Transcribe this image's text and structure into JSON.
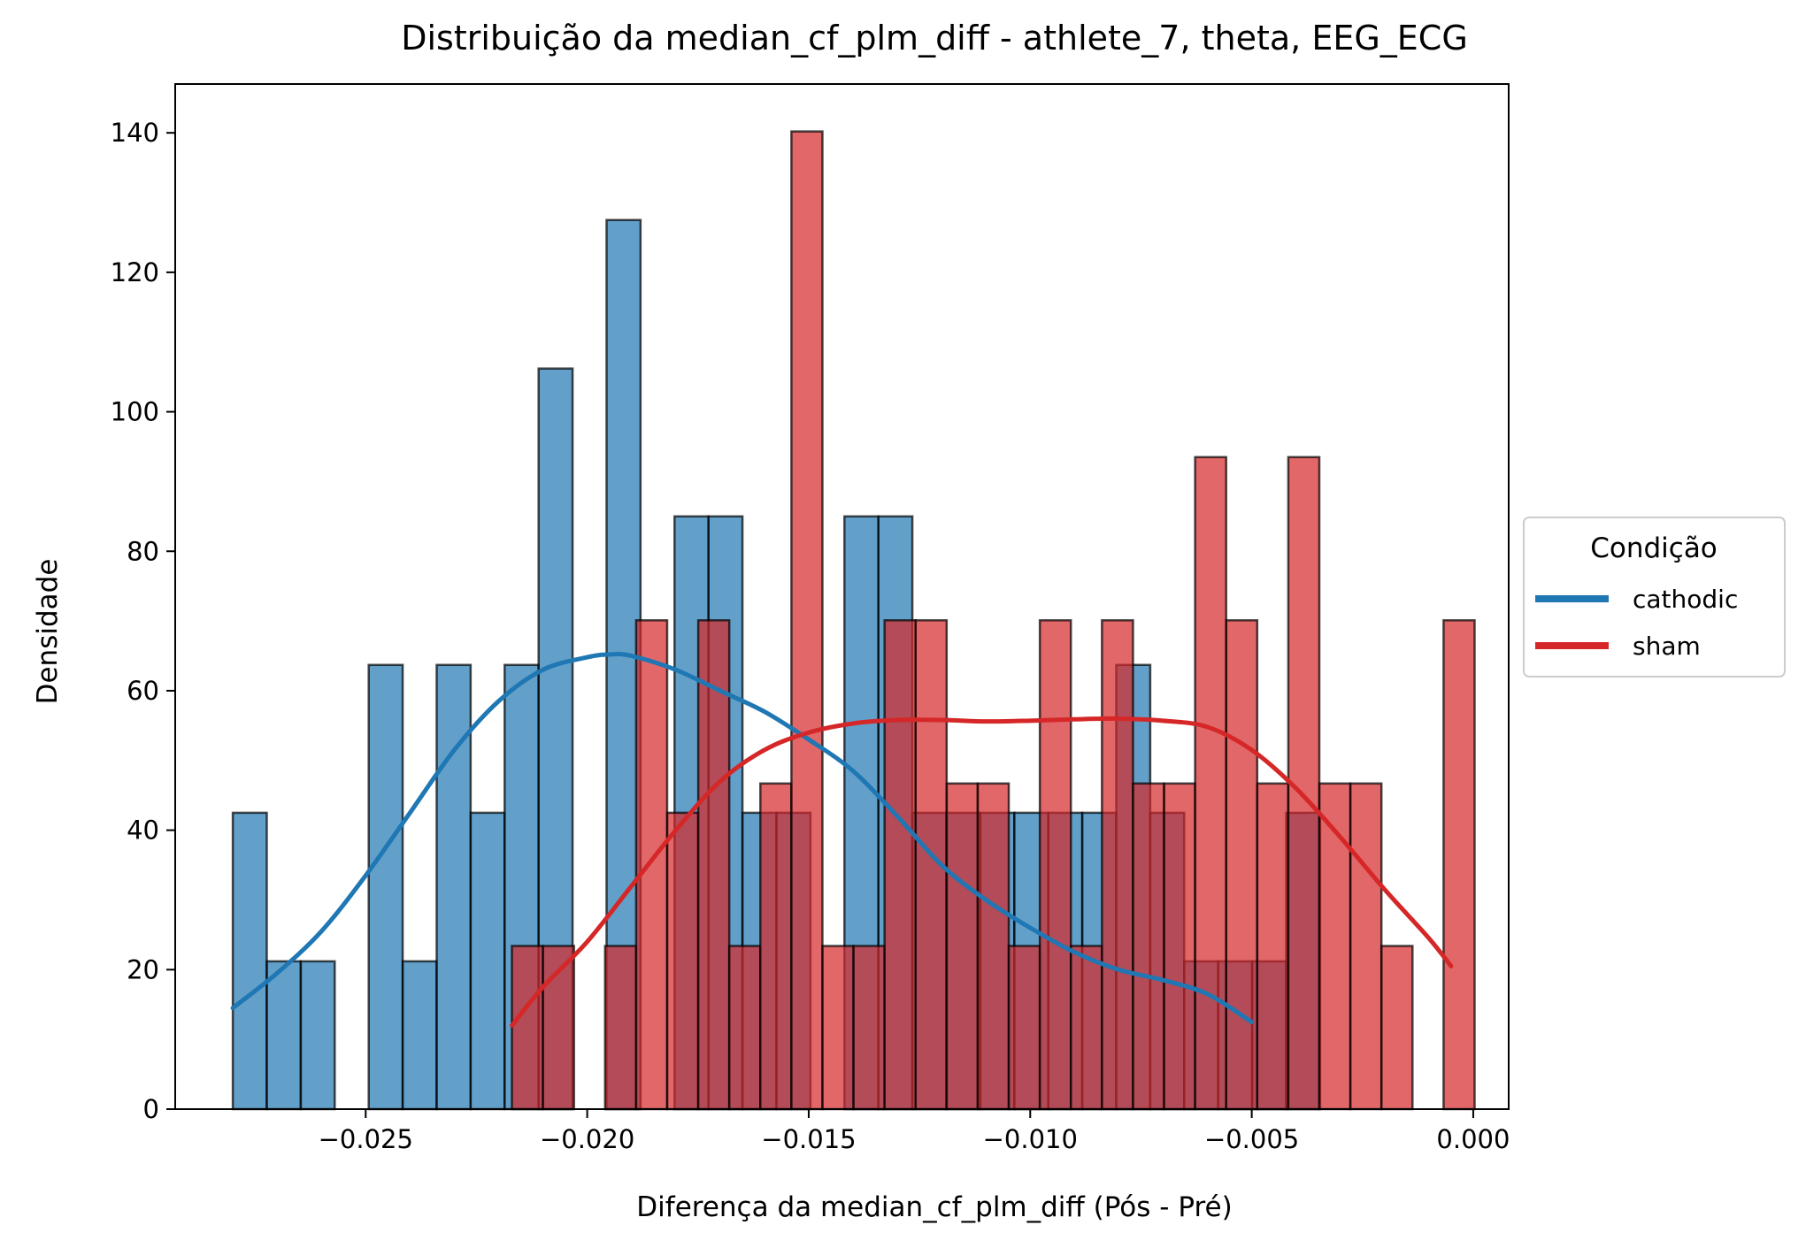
{
  "chart_data": {
    "type": "bar",
    "title": "Distribuição da median_cf_plm_diff - athlete_7, theta, EEG_ECG",
    "xlabel": "Diferença da median_cf_plm_diff (Pós - Pré)",
    "ylabel": "Densidade",
    "xlim": [
      -0.0293,
      0.0008
    ],
    "ylim": [
      0,
      147
    ],
    "xticks": [
      -0.025,
      -0.02,
      -0.015,
      -0.01,
      -0.005,
      0.0
    ],
    "xtick_labels": [
      "−0.025",
      "−0.020",
      "−0.015",
      "−0.010",
      "−0.005",
      "0.000"
    ],
    "yticks": [
      0,
      20,
      40,
      60,
      80,
      100,
      120,
      140
    ],
    "ytick_labels": [
      "0",
      "20",
      "40",
      "60",
      "80",
      "100",
      "120",
      "140"
    ],
    "grid": false,
    "legend": {
      "title": "Condição",
      "placement": "center-right-outside",
      "entries": [
        {
          "label": "cathodic",
          "color": "#1f77b4"
        },
        {
          "label": "sham",
          "color": "#d62728"
        }
      ]
    },
    "series": [
      {
        "name": "cathodic",
        "color": "#1f77b4",
        "bin_start": -0.028,
        "bin_width": 0.000767,
        "values": [
          42.5,
          21.2,
          21.2,
          0,
          63.7,
          21.2,
          63.7,
          42.5,
          63.7,
          106.2,
          0,
          127.5,
          0,
          85.0,
          85.0,
          42.5,
          42.5,
          0,
          85.0,
          85.0,
          42.5,
          42.5,
          42.5,
          42.5,
          42.5,
          42.5,
          63.7,
          42.5,
          21.2,
          21.2,
          21.2,
          42.5
        ],
        "kde": {
          "x": [
            -0.028,
            -0.027,
            -0.026,
            -0.025,
            -0.024,
            -0.023,
            -0.022,
            -0.021,
            -0.02,
            -0.0195,
            -0.019,
            -0.018,
            -0.017,
            -0.016,
            -0.015,
            -0.014,
            -0.013,
            -0.012,
            -0.011,
            -0.01,
            -0.009,
            -0.008,
            -0.007,
            -0.006,
            -0.005
          ],
          "y": [
            14.5,
            19.5,
            25.5,
            33.5,
            42.5,
            51.5,
            58.5,
            63.0,
            64.8,
            65.2,
            65.0,
            63.0,
            60.0,
            57.0,
            53.0,
            48.5,
            42.0,
            35.0,
            30.0,
            26.0,
            22.5,
            20.0,
            18.5,
            16.5,
            12.5
          ]
        }
      },
      {
        "name": "sham",
        "color": "#d62728",
        "bin_start": -0.0217,
        "bin_width": 0.000701,
        "values": [
          23.4,
          23.4,
          0,
          23.4,
          70.1,
          42.5,
          70.1,
          23.4,
          46.7,
          140.2,
          23.4,
          23.4,
          70.1,
          70.1,
          46.7,
          46.7,
          23.4,
          70.1,
          23.4,
          70.1,
          46.7,
          46.7,
          93.5,
          70.1,
          46.7,
          93.5,
          46.7,
          46.7,
          23.4,
          0,
          70.1
        ],
        "kde": {
          "x": [
            -0.0217,
            -0.021,
            -0.02,
            -0.019,
            -0.018,
            -0.017,
            -0.016,
            -0.015,
            -0.014,
            -0.013,
            -0.012,
            -0.011,
            -0.01,
            -0.009,
            -0.008,
            -0.007,
            -0.006,
            -0.005,
            -0.004,
            -0.003,
            -0.002,
            -0.001,
            -0.0005
          ],
          "y": [
            12.0,
            17.5,
            24.0,
            32.0,
            40.0,
            47.0,
            51.5,
            54.0,
            55.3,
            55.8,
            55.8,
            55.6,
            55.7,
            55.9,
            56.0,
            55.7,
            54.8,
            51.5,
            46.0,
            39.0,
            31.5,
            24.5,
            20.5
          ]
        }
      }
    ]
  }
}
